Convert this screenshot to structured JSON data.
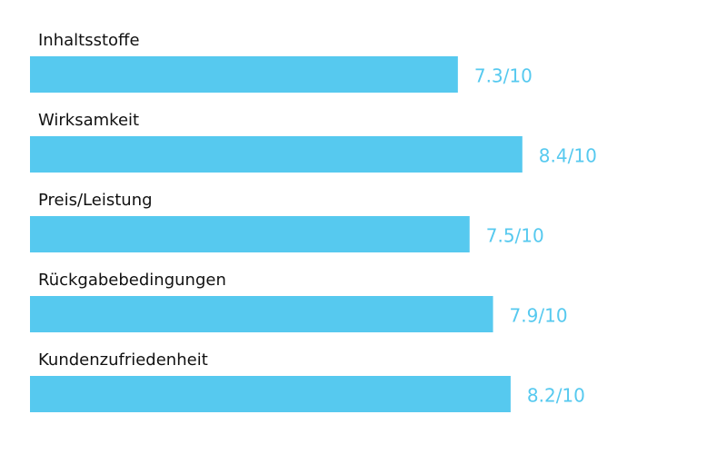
{
  "chart_data": {
    "type": "bar",
    "orientation": "horizontal",
    "categories": [
      "Inhaltsstoffe",
      "Wirksamkeit",
      "Preis/Leistung",
      "Rückgabebedingungen",
      "Kundenzufriedenheit"
    ],
    "values": [
      7.3,
      8.4,
      7.5,
      7.9,
      8.2
    ],
    "value_labels": [
      "7.3/10",
      "8.4/10",
      "7.5/10",
      "7.9/10",
      "8.2/10"
    ],
    "color": "#56c9ef",
    "xlim": [
      0,
      10
    ]
  }
}
